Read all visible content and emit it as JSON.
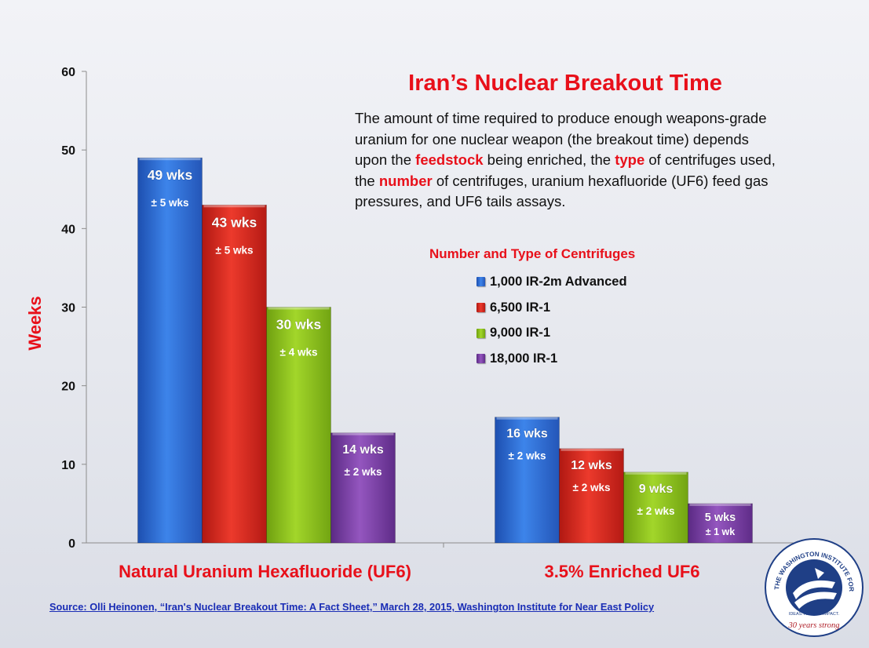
{
  "title": "Iran’s Nuclear Breakout Time",
  "description": {
    "p1": "The amount of time required to produce enough weapons-grade uranium for one nuclear weapon (the breakout time) depends upon the ",
    "kw1": "feedstock",
    "p2": " being enriched, the ",
    "kw2": "type",
    "p3": " of centrifuges used, the ",
    "kw3": "number",
    "p4": " of centrifuges, uranium hexafluoride (UF6) feed gas pressures, and UF6 tails assays."
  },
  "source": "Source: Olli Heinonen, “Iran's Nuclear Breakout Time: A Fact Sheet,” March 28, 2015, Washington Institute for Near East Policy",
  "logo": {
    "arc_text": "THE WASHINGTON INSTITUTE FOR NEAR EAST POLICY",
    "tagline": "IDEAS. ACTION. IMPACT.",
    "anniversary": "30 years strong"
  },
  "colors": {
    "accent": "#e8101a",
    "series": [
      "#2f6fd6",
      "#d8281f",
      "#8cc21a",
      "#7a3fa2"
    ]
  },
  "chart_data": {
    "type": "bar",
    "title": "Iran’s Nuclear Breakout Time",
    "ylabel": "Weeks",
    "xlabel": "",
    "ylim": [
      0,
      60
    ],
    "yticks": [
      0,
      10,
      20,
      30,
      40,
      50,
      60
    ],
    "grid": false,
    "legend_title": "Number and Type of Centrifuges",
    "legend_position": "right",
    "categories": [
      "Natural Uranium Hexafluoride (UF6)",
      "3.5% Enriched UF6"
    ],
    "series": [
      {
        "name": "1,000 IR-2m Advanced",
        "values": [
          49,
          16
        ],
        "labels": [
          "49 wks",
          "16 wks"
        ],
        "errors": [
          "± 5 wks",
          "± 2 wks"
        ]
      },
      {
        "name": "6,500 IR-1",
        "values": [
          43,
          12
        ],
        "labels": [
          "43 wks",
          "12 wks"
        ],
        "errors": [
          "± 5 wks",
          "± 2 wks"
        ]
      },
      {
        "name": "9,000 IR-1",
        "values": [
          30,
          9
        ],
        "labels": [
          "30 wks",
          "9 wks"
        ],
        "errors": [
          "± 4 wks",
          "± 2 wks"
        ]
      },
      {
        "name": "18,000 IR-1",
        "values": [
          14,
          5
        ],
        "labels": [
          "14 wks",
          "5 wks"
        ],
        "errors": [
          "± 2 wks",
          "± 1 wk"
        ]
      }
    ]
  }
}
